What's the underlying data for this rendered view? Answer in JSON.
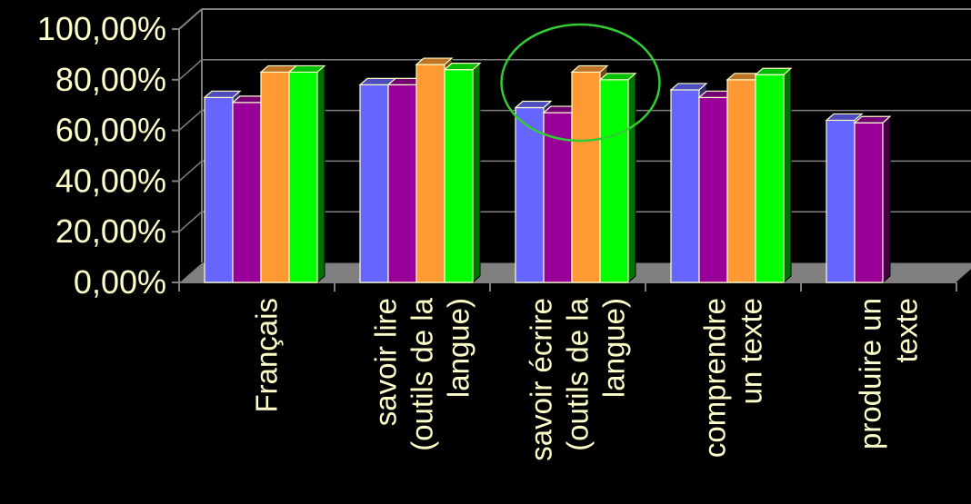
{
  "chart_data": {
    "type": "bar",
    "title": "",
    "xlabel": "",
    "ylabel": "",
    "ylim": [
      0,
      100
    ],
    "y_tick_labels": [
      "0,00%",
      "20,00%",
      "40,00%",
      "60,00%",
      "80,00%",
      "100,00%"
    ],
    "y_tick_values": [
      0,
      20,
      40,
      60,
      80,
      100
    ],
    "categories": [
      [
        "Français"
      ],
      [
        "savoir lire",
        "(outils de la",
        "langue)"
      ],
      [
        "savoir écrire",
        "(outils de la",
        "langue)"
      ],
      [
        "comprendre",
        "un texte"
      ],
      [
        "produire un",
        "texte"
      ]
    ],
    "series": [
      {
        "color": "#6666FF",
        "values": [
          73,
          78,
          69,
          76,
          64
        ]
      },
      {
        "color": "#990099",
        "values": [
          71,
          78,
          67,
          73,
          63
        ]
      },
      {
        "color": "#FF9933",
        "values": [
          83,
          86,
          83,
          80,
          null
        ]
      },
      {
        "color": "#00FF00",
        "values": [
          83,
          84,
          80,
          82,
          null
        ]
      }
    ],
    "grid": true,
    "style": "3d-clustered-bar",
    "background": "#000000",
    "text_color": "#FFFFCC",
    "highlight": {
      "shape": "ellipse",
      "color": "#33CC33",
      "category_index": 2
    }
  }
}
